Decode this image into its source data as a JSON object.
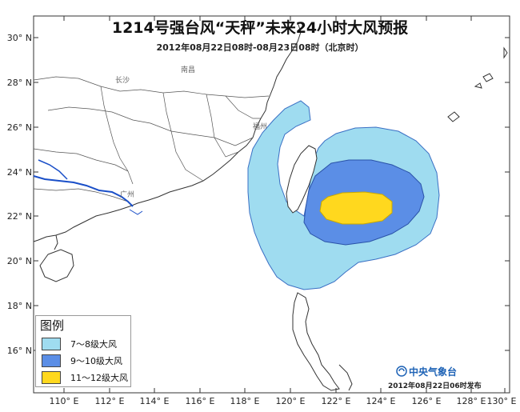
{
  "title": "1214号强台风“天秤”未来24小时大风预报",
  "subtitle": "2012年08月22日08时-08月23日08时（北京时）",
  "lat_labels": [
    "30° N",
    "28° N",
    "26° N",
    "24° N",
    "22° N",
    "20° N",
    "18° N",
    "16° N"
  ],
  "lon_labels": [
    "110° E",
    "112° E",
    "114° E",
    "116° E",
    "118° E",
    "120° E",
    "122° E",
    "124° E",
    "126° E",
    "128° E",
    "130° E"
  ],
  "cities": [
    "长沙",
    "南昌",
    "福州",
    "广州"
  ],
  "legend": {
    "title": "图例",
    "items": [
      {
        "label": "7～8级大风",
        "color": "#9fdcf0"
      },
      {
        "label": "9～10级大风",
        "color": "#5b8ee6"
      },
      {
        "label": "11～12级大风",
        "color": "#ffd81e"
      }
    ]
  },
  "agency": "中央气象台",
  "issued": "2012年08月22日06时发布",
  "colors": {
    "gale_7_8": "#9fdcf0",
    "gale_9_10": "#5b8ee6",
    "gale_11_12": "#ffd81e",
    "outline": "#3a6fc4"
  }
}
